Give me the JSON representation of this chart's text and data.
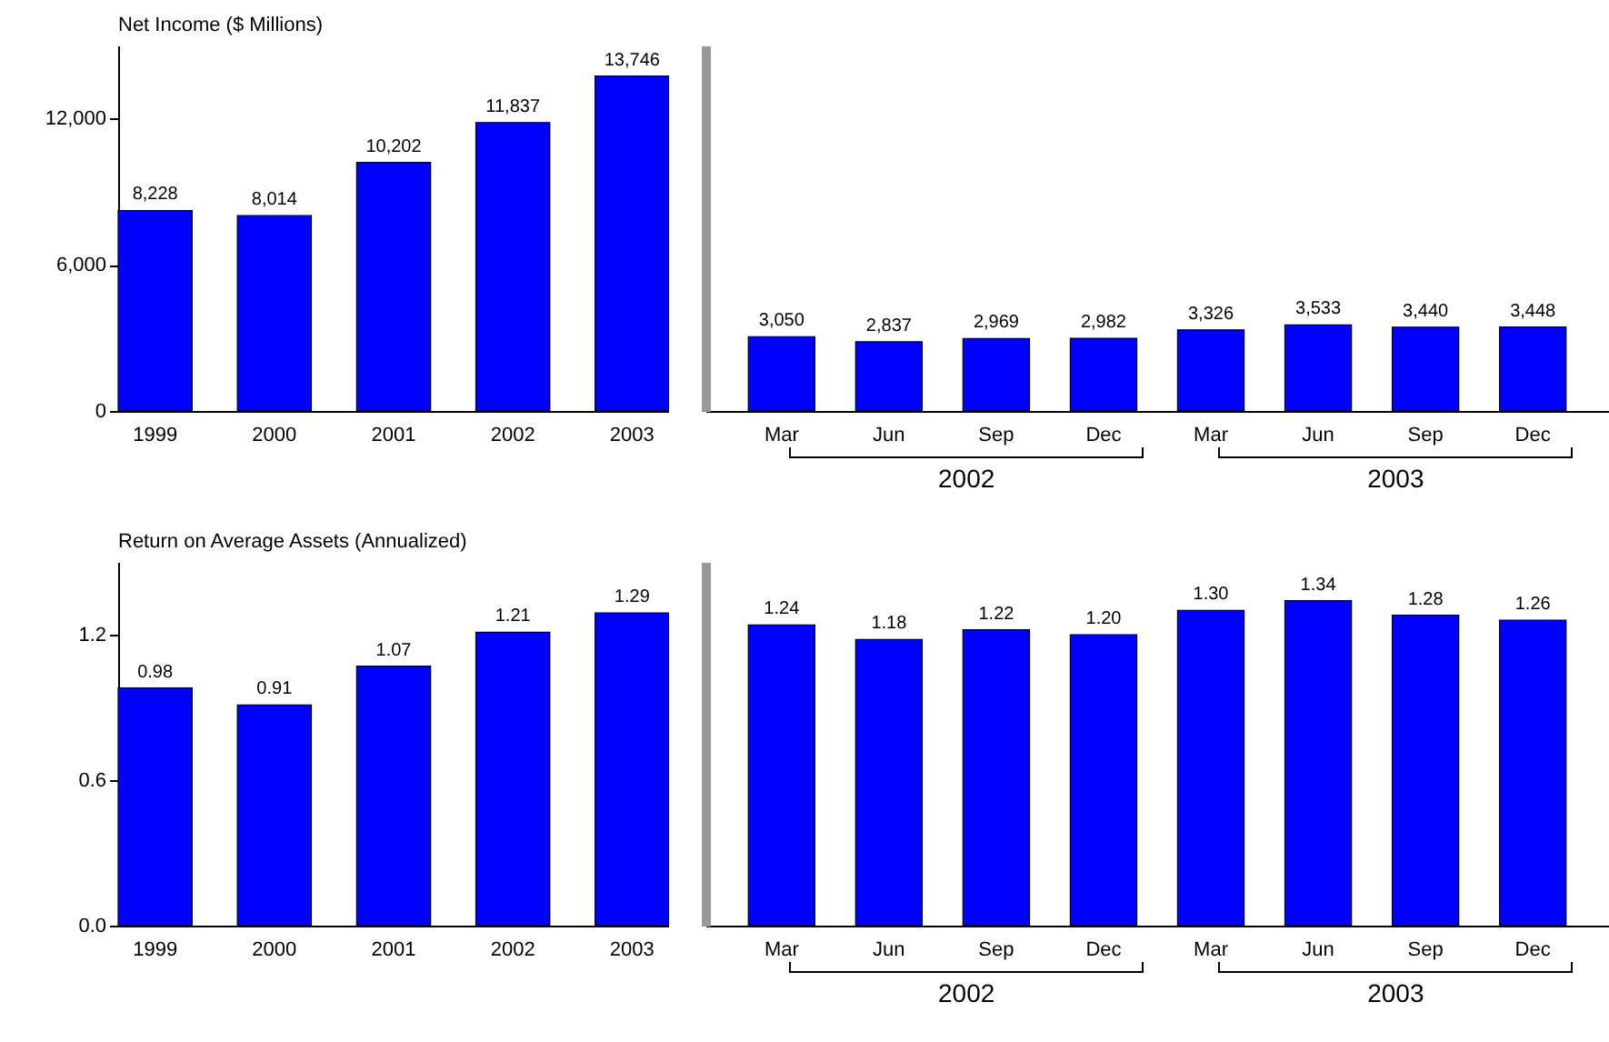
{
  "chart_data": [
    {
      "type": "bar",
      "title": "Net Income ($ Millions)",
      "categories": [
        "1999",
        "2000",
        "2001",
        "2002",
        "2003"
      ],
      "values": [
        8228,
        8014,
        10202,
        11837,
        13746
      ],
      "value_labels": [
        "8,228",
        "8,014",
        "10,202",
        "11,837",
        "13,746"
      ],
      "color": "#0000ff",
      "ylim": [
        0,
        15000
      ],
      "yticks": [
        {
          "value": 0,
          "label": "0"
        },
        {
          "value": 6000,
          "label": "6,000"
        },
        {
          "value": 12000,
          "label": "12,000"
        }
      ],
      "grid": false
    },
    {
      "type": "bar",
      "categories": [
        "Mar",
        "Jun",
        "Sep",
        "Dec",
        "Mar",
        "Jun",
        "Sep",
        "Dec"
      ],
      "values": [
        3050,
        2837,
        2969,
        2982,
        3326,
        3533,
        3440,
        3448
      ],
      "value_labels": [
        "3,050",
        "2,837",
        "2,969",
        "2,982",
        "3,326",
        "3,533",
        "3,440",
        "3,448"
      ],
      "color": "#0000ff",
      "ylim": [
        0,
        15000
      ],
      "tick_labels": "x",
      "annotations": [
        "2002",
        "2003"
      ]
    },
    {
      "type": "bar",
      "title": "Return on Average Assets (Annualized)",
      "categories": [
        "1999",
        "2000",
        "2001",
        "2002",
        "2003"
      ],
      "values": [
        0.98,
        0.91,
        1.07,
        1.21,
        1.29
      ],
      "color": "#0000ff",
      "ylim": [
        0,
        1.5
      ],
      "yticks": [
        {
          "value": 0,
          "label": "0.0"
        },
        {
          "value": 0.6,
          "label": "0.6"
        },
        {
          "value": 1.2,
          "label": "1.2"
        }
      ],
      "value_labels": [
        "0.98",
        "0.91",
        "1.07",
        "1.21",
        "1.29"
      ],
      "grid": false
    },
    {
      "type": "bar",
      "categories": [
        "Mar",
        "Jun",
        "Sep",
        "Dec",
        "Mar",
        "Jun",
        "Sep",
        "Dec"
      ],
      "values": [
        1.24,
        1.18,
        1.22,
        1.2,
        1.3,
        1.34,
        1.28,
        1.26
      ],
      "color": "#0000ff",
      "ylim": [
        0,
        1.5
      ],
      "tick_labels": "x",
      "value_labels": [
        "1.24",
        "1.18",
        "1.22",
        "1.20",
        "1.30",
        "1.34",
        "1.28",
        "1.26"
      ],
      "annotations": [
        "2002",
        "2003"
      ]
    }
  ]
}
